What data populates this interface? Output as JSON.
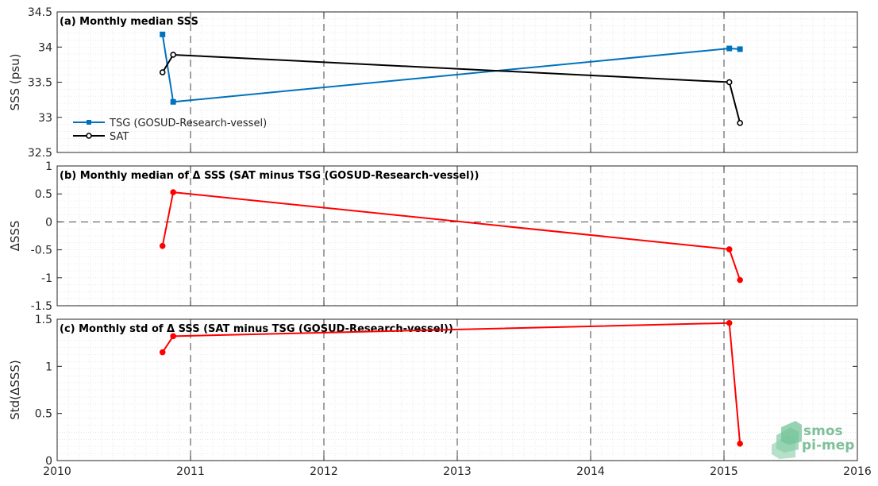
{
  "chart_data": [
    {
      "type": "line",
      "title": "(a) Monthly median SSS",
      "ylabel": "SSS (psu)",
      "xlim": [
        2010,
        2016
      ],
      "ylim": [
        32.5,
        34.5
      ],
      "xticks": [
        2010,
        2011,
        2012,
        2013,
        2014,
        2015,
        2016
      ],
      "yticks": [
        32.5,
        33,
        33.5,
        34,
        34.5
      ],
      "ytick_labels": [
        "32.5",
        "33",
        "33.5",
        "34",
        "34.5"
      ],
      "grid": "dashed major x lines + dotted minor grid",
      "legend_position": "lower-left",
      "series": [
        {
          "name": "TSG (GOSUD-Research-vessel)",
          "color": "#0072bd",
          "marker": "square",
          "x": [
            2010.79,
            2010.87,
            2015.04,
            2015.12
          ],
          "y": [
            34.18,
            33.22,
            33.98,
            33.97
          ]
        },
        {
          "name": "SAT",
          "color": "#000000",
          "marker": "circle",
          "x": [
            2010.79,
            2010.87,
            2015.04,
            2015.12
          ],
          "y": [
            33.64,
            33.89,
            33.5,
            32.92
          ]
        }
      ]
    },
    {
      "type": "line",
      "title": "(b) Monthly median of Δ SSS (SAT minus TSG (GOSUD-Research-vessel))",
      "ylabel": "ΔSSS",
      "xlim": [
        2010,
        2016
      ],
      "ylim": [
        -1.5,
        1
      ],
      "yticks": [
        -1.5,
        -1,
        -0.5,
        0,
        0.5,
        1
      ],
      "ytick_labels": [
        "-1.5",
        "-1",
        "-0.5",
        "0",
        "0.5",
        "1"
      ],
      "reference_line": 0,
      "series": [
        {
          "color": "#ff0000",
          "marker": "circle",
          "x": [
            2010.79,
            2010.87,
            2015.04,
            2015.12
          ],
          "y": [
            -0.43,
            0.53,
            -0.49,
            -1.04
          ]
        }
      ]
    },
    {
      "type": "line",
      "title": "(c) Monthly std of Δ SSS (SAT minus TSG (GOSUD-Research-vessel))",
      "ylabel": "Std(ΔSSS)",
      "xlim": [
        2010,
        2016
      ],
      "ylim": [
        0,
        1.5
      ],
      "xticks": [
        2010,
        2011,
        2012,
        2013,
        2014,
        2015,
        2016
      ],
      "xtick_labels": [
        "2010",
        "2011",
        "2012",
        "2013",
        "2014",
        "2015",
        "2016"
      ],
      "yticks": [
        0,
        0.5,
        1,
        1.5
      ],
      "ytick_labels": [
        "0",
        "0.5",
        "1",
        "1.5"
      ],
      "series": [
        {
          "color": "#ff0000",
          "marker": "circle",
          "x": [
            2010.79,
            2010.87,
            2015.04,
            2015.12
          ],
          "y": [
            1.15,
            1.32,
            1.46,
            0.18
          ]
        }
      ]
    }
  ],
  "logo": {
    "line1": "smos",
    "line2": "pi-mep",
    "color": "#7fbf9a"
  }
}
